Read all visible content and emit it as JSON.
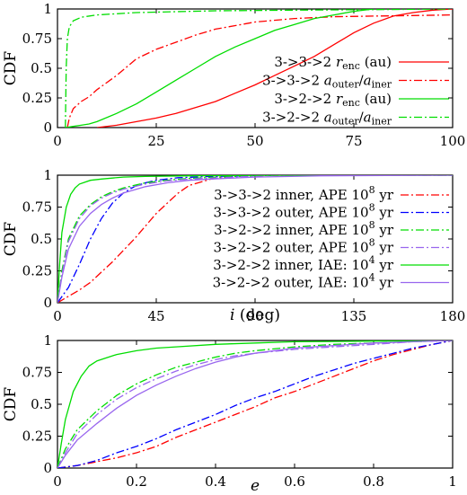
{
  "chart_data": [
    {
      "type": "line",
      "ylabel": "CDF",
      "xlabel": "",
      "xlim": [
        0,
        100
      ],
      "ylim": [
        0,
        1
      ],
      "xticks": [
        "0",
        "25",
        "50",
        "75",
        "100"
      ],
      "yticks": [
        "0",
        "0.25",
        "0.5",
        "0.75",
        "1"
      ],
      "legend_position": "bottom-right",
      "series": [
        {
          "name": "3->3->2 r_enc (au)",
          "label_main": "3->3->2 ",
          "label_tail": " (au)",
          "math": "r",
          "math_sub": "enc",
          "color": "#ff0000",
          "dash": "solid",
          "x": [
            10,
            15,
            20,
            25,
            30,
            35,
            40,
            45,
            50,
            55,
            60,
            65,
            70,
            75,
            80,
            85,
            90,
            95,
            100
          ],
          "y": [
            0,
            0.02,
            0.05,
            0.08,
            0.12,
            0.17,
            0.22,
            0.29,
            0.36,
            0.44,
            0.52,
            0.6,
            0.7,
            0.8,
            0.88,
            0.94,
            0.97,
            0.99,
            1
          ]
        },
        {
          "name": "3->3->2 a_outer/a_iner",
          "label_main": "3->3->2 ",
          "label_tail": "",
          "math": "a_outer/a_iner",
          "math_sub": "",
          "color": "#ff0000",
          "dash": "dashdot",
          "x": [
            2.5,
            3,
            4,
            6,
            8,
            10,
            15,
            20,
            25,
            30,
            35,
            40,
            45,
            50,
            60,
            70,
            80,
            90,
            100
          ],
          "y": [
            0,
            0.08,
            0.16,
            0.22,
            0.26,
            0.32,
            0.44,
            0.58,
            0.66,
            0.72,
            0.78,
            0.83,
            0.86,
            0.89,
            0.92,
            0.935,
            0.94,
            0.945,
            0.95
          ]
        },
        {
          "name": "3->2->2 r_enc (au)",
          "label_main": "3->2->2 ",
          "label_tail": " (au)",
          "math": "r",
          "math_sub": "enc",
          "color": "#00dd00",
          "dash": "solid",
          "x": [
            2,
            4,
            6,
            8,
            10,
            15,
            20,
            25,
            30,
            35,
            40,
            45,
            50,
            55,
            60,
            65,
            70,
            75,
            80
          ],
          "y": [
            0,
            0.01,
            0.02,
            0.03,
            0.05,
            0.12,
            0.2,
            0.3,
            0.4,
            0.5,
            0.6,
            0.68,
            0.75,
            0.82,
            0.87,
            0.92,
            0.95,
            0.98,
            1
          ]
        },
        {
          "name": "3->2->2 a_outer/a_iner",
          "label_main": "3->2->2 ",
          "label_tail": "",
          "math": "a_outer/a_iner",
          "math_sub": "",
          "color": "#00dd00",
          "dash": "dashdot",
          "x": [
            2,
            2.2,
            2.5,
            3,
            4,
            6,
            10,
            20,
            40,
            60,
            80,
            100
          ],
          "y": [
            0,
            0.5,
            0.75,
            0.85,
            0.9,
            0.93,
            0.95,
            0.97,
            0.985,
            0.99,
            0.995,
            1
          ]
        }
      ]
    },
    {
      "type": "line",
      "ylabel": "CDF",
      "xlabel": "i (deg)",
      "xlim": [
        0,
        180
      ],
      "ylim": [
        0,
        1
      ],
      "xticks": [
        "0",
        "45",
        "90",
        "135",
        "180"
      ],
      "yticks": [
        "0",
        "0.25",
        "0.5",
        "0.75",
        "1"
      ],
      "legend_position": "right",
      "series": [
        {
          "name": "3->3->2 inner, APE 10^8 yr",
          "label_main": "3->3->2 inner, APE 10",
          "exp": "8",
          "label_tail": " yr",
          "color": "#ff0000",
          "dash": "dashdot",
          "x": [
            0,
            5,
            10,
            15,
            20,
            25,
            30,
            35,
            40,
            45,
            50,
            55,
            60,
            70,
            80,
            100,
            180
          ],
          "y": [
            0,
            0.05,
            0.1,
            0.16,
            0.24,
            0.32,
            0.41,
            0.5,
            0.6,
            0.7,
            0.78,
            0.86,
            0.92,
            0.97,
            0.99,
            1,
            1
          ]
        },
        {
          "name": "3->3->2 outer, APE 10^8 yr",
          "label_main": "3->3->2 outer, APE 10",
          "exp": "8",
          "label_tail": " yr",
          "color": "#0000ff",
          "dash": "dashdot",
          "x": [
            0,
            5,
            10,
            15,
            20,
            25,
            30,
            35,
            40,
            45,
            55,
            70,
            100,
            180
          ],
          "y": [
            0,
            0.12,
            0.3,
            0.5,
            0.66,
            0.78,
            0.86,
            0.91,
            0.94,
            0.96,
            0.98,
            0.99,
            1,
            1
          ]
        },
        {
          "name": "3->2->2 inner, APE 10^8 yr",
          "label_main": "3->2->2 inner, APE 10",
          "exp": "8",
          "label_tail": " yr",
          "color": "#00dd00",
          "dash": "dashdot",
          "x": [
            0,
            2,
            5,
            10,
            15,
            20,
            25,
            30,
            40,
            50,
            60,
            80,
            100,
            180
          ],
          "y": [
            0,
            0.25,
            0.5,
            0.68,
            0.77,
            0.83,
            0.87,
            0.9,
            0.94,
            0.96,
            0.975,
            0.99,
            1,
            1
          ]
        },
        {
          "name": "3->2->2 outer, APE 10^8 yr",
          "label_main": "3->2->2 outer, APE 10",
          "exp": "8",
          "label_tail": " yr",
          "color": "#9966ee",
          "dash": "dashdot",
          "x": [
            0,
            2,
            5,
            10,
            15,
            20,
            25,
            30,
            40,
            50,
            60,
            80,
            100,
            180
          ],
          "y": [
            0,
            0.22,
            0.48,
            0.66,
            0.76,
            0.82,
            0.86,
            0.89,
            0.93,
            0.955,
            0.97,
            0.985,
            1,
            1
          ]
        },
        {
          "name": "3->2->2 inner, IAE: 10^4 yr",
          "label_main": "3->2->2 inner, IAE: 10",
          "exp": "4",
          "label_tail": " yr",
          "color": "#00dd00",
          "dash": "solid",
          "x": [
            0,
            1,
            2,
            4,
            6,
            8,
            10,
            15,
            20,
            30,
            40,
            60,
            100,
            180
          ],
          "y": [
            0,
            0.3,
            0.55,
            0.75,
            0.85,
            0.9,
            0.93,
            0.96,
            0.97,
            0.985,
            0.99,
            0.995,
            1,
            1
          ]
        },
        {
          "name": "3->2->2 outer, IAE: 10^4 yr",
          "label_main": "3->2->2 outer, IAE: 10",
          "exp": "4",
          "label_tail": " yr",
          "color": "#9966ee",
          "dash": "solid",
          "x": [
            0,
            2,
            5,
            10,
            15,
            20,
            25,
            30,
            40,
            50,
            60,
            70,
            90,
            120,
            180
          ],
          "y": [
            0,
            0.2,
            0.42,
            0.6,
            0.7,
            0.77,
            0.82,
            0.86,
            0.91,
            0.94,
            0.96,
            0.97,
            0.985,
            0.995,
            1
          ]
        }
      ]
    },
    {
      "type": "line",
      "ylabel": "CDF",
      "xlabel": "e",
      "xlim": [
        0,
        1
      ],
      "ylim": [
        0,
        1
      ],
      "xticks": [
        "0",
        "0.2",
        "0.4",
        "0.6",
        "0.8",
        "1"
      ],
      "yticks": [
        "0",
        "0.25",
        "0.5",
        "0.75",
        "1"
      ],
      "legend_position": "none",
      "series": [
        {
          "name": "3->3->2 inner, APE 10^8 yr",
          "color": "#ff0000",
          "dash": "dashdot",
          "x": [
            0,
            0.05,
            0.1,
            0.15,
            0.2,
            0.25,
            0.3,
            0.35,
            0.4,
            0.45,
            0.5,
            0.55,
            0.6,
            0.65,
            0.7,
            0.75,
            0.8,
            0.85,
            0.9,
            0.95,
            1
          ],
          "y": [
            0,
            0.02,
            0.05,
            0.08,
            0.12,
            0.17,
            0.24,
            0.3,
            0.36,
            0.42,
            0.48,
            0.55,
            0.6,
            0.66,
            0.72,
            0.78,
            0.84,
            0.89,
            0.93,
            0.97,
            1
          ]
        },
        {
          "name": "3->3->2 outer, APE 10^8 yr",
          "color": "#0000ff",
          "dash": "dashdot",
          "x": [
            0,
            0.05,
            0.1,
            0.15,
            0.2,
            0.25,
            0.3,
            0.35,
            0.4,
            0.45,
            0.5,
            0.55,
            0.6,
            0.65,
            0.7,
            0.75,
            0.8,
            0.85,
            0.9,
            0.95,
            1
          ],
          "y": [
            0,
            0.02,
            0.06,
            0.12,
            0.17,
            0.23,
            0.3,
            0.36,
            0.42,
            0.49,
            0.55,
            0.6,
            0.66,
            0.72,
            0.77,
            0.82,
            0.86,
            0.9,
            0.94,
            0.97,
            1
          ]
        },
        {
          "name": "3->2->2 inner, APE 10^8 yr",
          "color": "#00dd00",
          "dash": "dashdot",
          "x": [
            0,
            0.02,
            0.05,
            0.1,
            0.15,
            0.2,
            0.25,
            0.3,
            0.35,
            0.4,
            0.45,
            0.5,
            0.6,
            0.7,
            0.8,
            0.9,
            1
          ],
          "y": [
            0,
            0.15,
            0.3,
            0.45,
            0.57,
            0.66,
            0.73,
            0.79,
            0.83,
            0.87,
            0.9,
            0.92,
            0.95,
            0.97,
            0.98,
            0.99,
            1
          ]
        },
        {
          "name": "3->2->2 outer, APE 10^8 yr",
          "color": "#9966ee",
          "dash": "dashdot",
          "x": [
            0,
            0.02,
            0.05,
            0.1,
            0.15,
            0.2,
            0.25,
            0.3,
            0.35,
            0.4,
            0.45,
            0.5,
            0.6,
            0.7,
            0.8,
            0.9,
            1
          ],
          "y": [
            0,
            0.12,
            0.27,
            0.42,
            0.54,
            0.63,
            0.7,
            0.76,
            0.81,
            0.85,
            0.88,
            0.9,
            0.93,
            0.95,
            0.97,
            0.99,
            1
          ]
        },
        {
          "name": "3->2->2 inner, IAE: 10^4 yr",
          "color": "#00dd00",
          "dash": "solid",
          "x": [
            0,
            0.01,
            0.02,
            0.04,
            0.06,
            0.08,
            0.1,
            0.15,
            0.2,
            0.25,
            0.3,
            0.4,
            0.5,
            0.6,
            0.8,
            1
          ],
          "y": [
            0,
            0.2,
            0.38,
            0.6,
            0.72,
            0.8,
            0.84,
            0.89,
            0.92,
            0.94,
            0.95,
            0.97,
            0.98,
            0.99,
            0.995,
            1
          ]
        },
        {
          "name": "3->2->2 outer, IAE: 10^4 yr",
          "color": "#9966ee",
          "dash": "solid",
          "x": [
            0,
            0.02,
            0.05,
            0.1,
            0.15,
            0.2,
            0.25,
            0.3,
            0.35,
            0.4,
            0.45,
            0.5,
            0.6,
            0.7,
            0.8,
            0.9,
            1
          ],
          "y": [
            0,
            0.1,
            0.22,
            0.35,
            0.47,
            0.57,
            0.65,
            0.72,
            0.78,
            0.83,
            0.87,
            0.9,
            0.94,
            0.96,
            0.98,
            0.99,
            1
          ]
        }
      ]
    }
  ]
}
